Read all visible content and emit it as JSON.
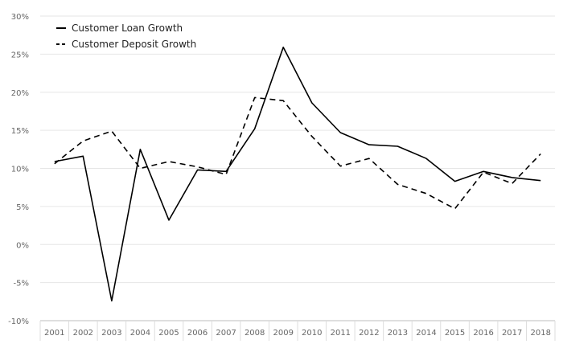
{
  "chart_data": {
    "type": "line",
    "title": "",
    "xlabel": "",
    "ylabel": "",
    "categories": [
      "2001",
      "2002",
      "2003",
      "2004",
      "2005",
      "2006",
      "2007",
      "2008",
      "2009",
      "2010",
      "2011",
      "2012",
      "2013",
      "2014",
      "2015",
      "2016",
      "2017",
      "2018"
    ],
    "ylim": [
      -10,
      30
    ],
    "yticks": [
      -10,
      -5,
      0,
      5,
      10,
      15,
      20,
      25,
      30
    ],
    "ytick_labels": [
      "-10%",
      "-5%",
      "0%",
      "5%",
      "10%",
      "15%",
      "20%",
      "25%",
      "30%"
    ],
    "grid": "horizontal",
    "legend_position": "top-left",
    "series": [
      {
        "name": "Customer Loan Growth",
        "line_style": "solid",
        "color": "#000000",
        "values": [
          10.9,
          11.6,
          -7.4,
          12.5,
          3.2,
          9.8,
          9.6,
          15.2,
          25.9,
          18.6,
          14.7,
          13.1,
          12.9,
          11.3,
          8.3,
          9.6,
          8.8,
          8.4
        ]
      },
      {
        "name": "Customer Deposit Growth",
        "line_style": "dashed",
        "color": "#000000",
        "values": [
          10.6,
          13.6,
          14.9,
          10.0,
          10.9,
          10.2,
          9.2,
          19.3,
          18.9,
          14.2,
          10.3,
          11.3,
          7.9,
          6.7,
          4.7,
          9.5,
          8.0,
          11.9
        ]
      }
    ]
  }
}
